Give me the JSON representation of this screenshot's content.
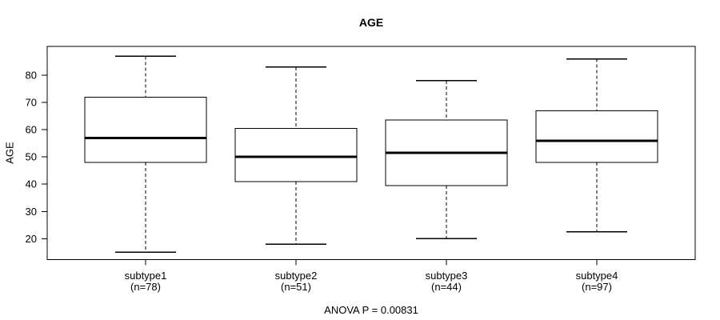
{
  "chart_data": {
    "type": "boxplot",
    "title": "AGE",
    "ylabel": "AGE",
    "footer": "ANOVA P = 0.00831",
    "yticks": [
      20,
      30,
      40,
      50,
      60,
      70,
      80
    ],
    "ylim": [
      12.3,
      90.6
    ],
    "grid": false,
    "legend": "none",
    "colors": {
      "line": "#000000",
      "box_fill": "#ffffff",
      "background": "#ffffff"
    },
    "groups": [
      {
        "label": "subtype1",
        "n_label": "(n=78)",
        "n": 78,
        "whisker_low": 15,
        "q1": 48,
        "median": 57,
        "q3": 72,
        "whisker_high": 87
      },
      {
        "label": "subtype2",
        "n_label": "(n=51)",
        "n": 51,
        "whisker_low": 18,
        "q1": 41,
        "median": 50,
        "q3": 60.5,
        "whisker_high": 83
      },
      {
        "label": "subtype3",
        "n_label": "(n=44)",
        "n": 44,
        "whisker_low": 20,
        "q1": 39.5,
        "median": 51.5,
        "q3": 63.5,
        "whisker_high": 78
      },
      {
        "label": "subtype4",
        "n_label": "(n=97)",
        "n": 97,
        "whisker_low": 22.5,
        "q1": 48,
        "median": 56,
        "q3": 67,
        "whisker_high": 86
      }
    ]
  }
}
